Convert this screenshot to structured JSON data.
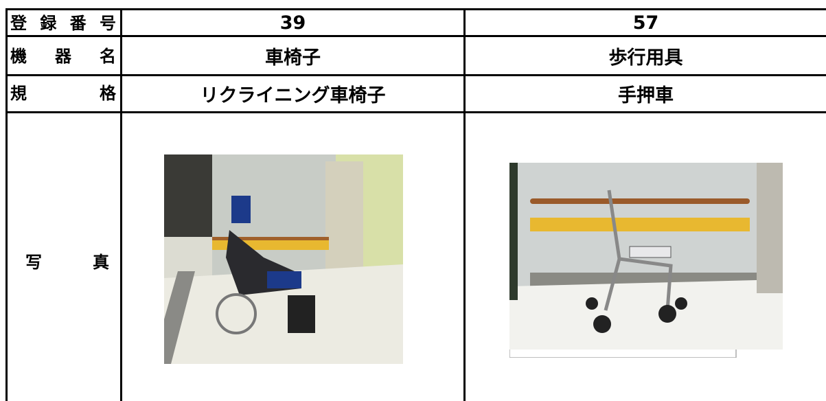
{
  "table": {
    "rows": [
      [
        "登 録 番 号",
        "39",
        "57"
      ],
      [
        "機 器 名",
        "車椅子",
        "歩行用具"
      ],
      [
        "規 格",
        "リクライニング車椅子",
        "手押車"
      ],
      [
        "写 真"
      ]
    ]
  }
}
